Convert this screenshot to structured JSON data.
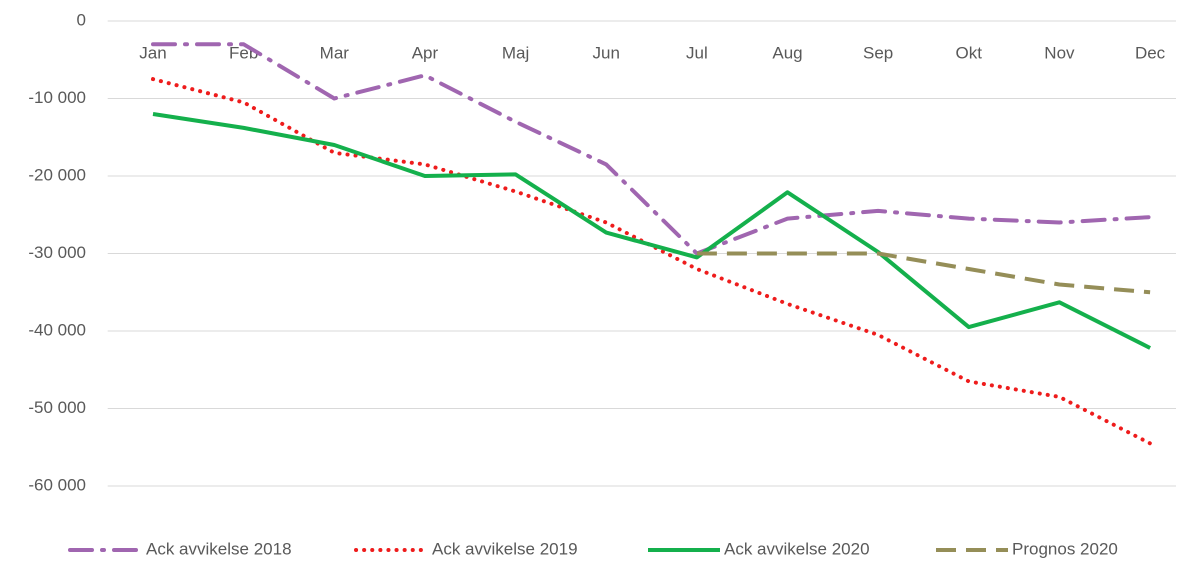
{
  "chart_data": {
    "type": "line",
    "categories": [
      "Jan",
      "Feb",
      "Mar",
      "Apr",
      "Maj",
      "Jun",
      "Jul",
      "Aug",
      "Sep",
      "Okt",
      "Nov",
      "Dec"
    ],
    "series": [
      {
        "name": "Ack avvikelse 2018",
        "color": "#a066b0",
        "dash": "dash-dot",
        "values": [
          -3000,
          -3000,
          -10000,
          -7000,
          -13000,
          -18500,
          -30000,
          -25500,
          -24500,
          -25500,
          -26000,
          -25300
        ]
      },
      {
        "name": "Ack avvikelse 2019",
        "color": "#ee1c1c",
        "dash": "dot",
        "values": [
          -7500,
          -10500,
          -17000,
          -18500,
          -22000,
          -26000,
          -32000,
          -36500,
          -40500,
          -46500,
          -48500,
          -54500
        ]
      },
      {
        "name": "Ack avvikelse 2020",
        "color": "#14b04c",
        "dash": "solid",
        "values": [
          -12000,
          -13800,
          -16000,
          -20000,
          -19800,
          -27300,
          -30500,
          -22100,
          -29800,
          -39500,
          -36300,
          -42200
        ]
      },
      {
        "name": "Prognos 2020",
        "color": "#958e58",
        "dash": "dash",
        "values": [
          null,
          null,
          null,
          null,
          null,
          null,
          -30000,
          -30000,
          -30000,
          -32000,
          -34000,
          -35000
        ]
      }
    ],
    "ylim": [
      -60000,
      0
    ],
    "yticks": [
      0,
      {
        "value": -10000,
        "label": "-10 000"
      },
      {
        "value": -20000,
        "label": "-20 000"
      },
      {
        "value": -30000,
        "label": "-30 000"
      },
      {
        "value": -40000,
        "label": "-40 000"
      },
      {
        "value": -50000,
        "label": "-50 000"
      },
      {
        "value": -60000,
        "label": "-60 000"
      }
    ],
    "grid": true,
    "legend": "bottom"
  }
}
